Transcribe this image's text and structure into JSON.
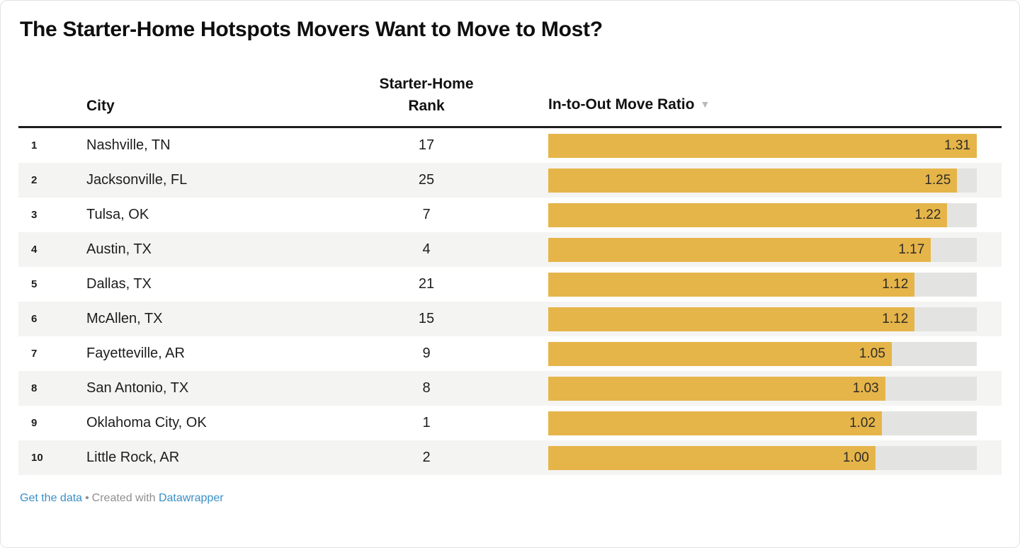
{
  "title": "The Starter-Home Hotspots Movers Want to Move to Most?",
  "table": {
    "columns": {
      "city": "City",
      "rank_line1": "Starter-Home",
      "rank_line2": "Rank",
      "ratio": "In-to-Out Move Ratio",
      "sort_icon": "▼"
    },
    "rows": [
      {
        "index": "1",
        "city": "Nashville, TN",
        "rank": "17",
        "ratio": "1.31",
        "ratio_value": 1.31
      },
      {
        "index": "2",
        "city": "Jacksonville, FL",
        "rank": "25",
        "ratio": "1.25",
        "ratio_value": 1.25
      },
      {
        "index": "3",
        "city": "Tulsa, OK",
        "rank": "7",
        "ratio": "1.22",
        "ratio_value": 1.22
      },
      {
        "index": "4",
        "city": "Austin, TX",
        "rank": "4",
        "ratio": "1.17",
        "ratio_value": 1.17
      },
      {
        "index": "5",
        "city": "Dallas, TX",
        "rank": "21",
        "ratio": "1.12",
        "ratio_value": 1.12
      },
      {
        "index": "6",
        "city": "McAllen, TX",
        "rank": "15",
        "ratio": "1.12",
        "ratio_value": 1.12
      },
      {
        "index": "7",
        "city": "Fayetteville, AR",
        "rank": "9",
        "ratio": "1.05",
        "ratio_value": 1.05
      },
      {
        "index": "8",
        "city": "San Antonio, TX",
        "rank": "8",
        "ratio": "1.03",
        "ratio_value": 1.03
      },
      {
        "index": "9",
        "city": "Oklahoma City, OK",
        "rank": "1",
        "ratio": "1.02",
        "ratio_value": 1.02
      },
      {
        "index": "10",
        "city": "Little Rock, AR",
        "rank": "2",
        "ratio": "1.00",
        "ratio_value": 1.0
      }
    ]
  },
  "footer": {
    "get_data": "Get the data",
    "separator": "•",
    "created_with": "Created with",
    "brand": "Datawrapper"
  },
  "colors": {
    "bar": "#e5b54a",
    "bar_track": "#e3e3e1",
    "stripe": "#f4f4f3",
    "header_rule": "#1d1d1d",
    "link": "#3a8fc8",
    "muted": "#8f8f8f"
  },
  "chart_data": {
    "type": "bar",
    "orientation": "horizontal",
    "title": "The Starter-Home Hotspots Movers Want to Move to Most?",
    "categories": [
      "Nashville, TN",
      "Jacksonville, FL",
      "Tulsa, OK",
      "Austin, TX",
      "Dallas, TX",
      "McAllen, TX",
      "Fayetteville, AR",
      "San Antonio, TX",
      "Oklahoma City, OK",
      "Little Rock, AR"
    ],
    "series": [
      {
        "name": "Starter-Home Rank",
        "values": [
          17,
          25,
          7,
          4,
          21,
          15,
          9,
          8,
          1,
          2
        ]
      },
      {
        "name": "In-to-Out Move Ratio",
        "values": [
          1.31,
          1.25,
          1.22,
          1.17,
          1.12,
          1.12,
          1.05,
          1.03,
          1.02,
          1.0
        ]
      }
    ],
    "bar_series": "In-to-Out Move Ratio",
    "xlim": [
      0,
      1.31
    ],
    "sort": "In-to-Out Move Ratio descending",
    "value_labels": "inside-end",
    "bar_color": "#e5b54a",
    "grid": false,
    "legend": "none"
  }
}
